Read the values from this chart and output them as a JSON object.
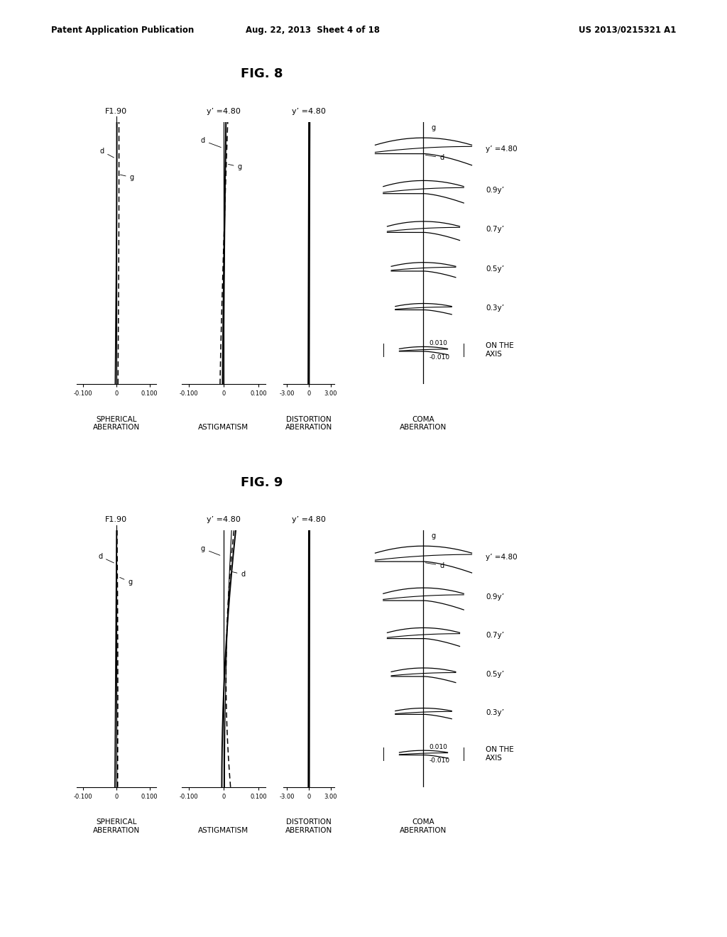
{
  "background_color": "#ffffff",
  "header_text": "Patent Application Publication",
  "header_date": "Aug. 22, 2013  Sheet 4 of 18",
  "header_patent": "US 2013/0215321 A1",
  "fig8_title": "FIG. 8",
  "fig9_title": "FIG. 9",
  "fig8_labels": {
    "spherical": "F1.90",
    "astigmatism": "y’ =4.80",
    "distortion": "y’ =4.80"
  },
  "fig9_labels": {
    "spherical": "F1.90",
    "astigmatism": "y’ =4.80",
    "distortion": "y’ =4.80"
  },
  "bottom_labels": [
    "SPHERICAL\nABERRATION",
    "ASTIGMATISM",
    "DISTORTION\nABERRATION",
    "COMA\nABERRATION"
  ],
  "coma_labels": [
    "y’ =4.80",
    "0.9y’",
    "0.7y’",
    "0.5y’",
    "0.3y’",
    "ON THE\nAXIS"
  ],
  "coma_tick_pos": "0.010",
  "coma_tick_neg": "-0.010"
}
